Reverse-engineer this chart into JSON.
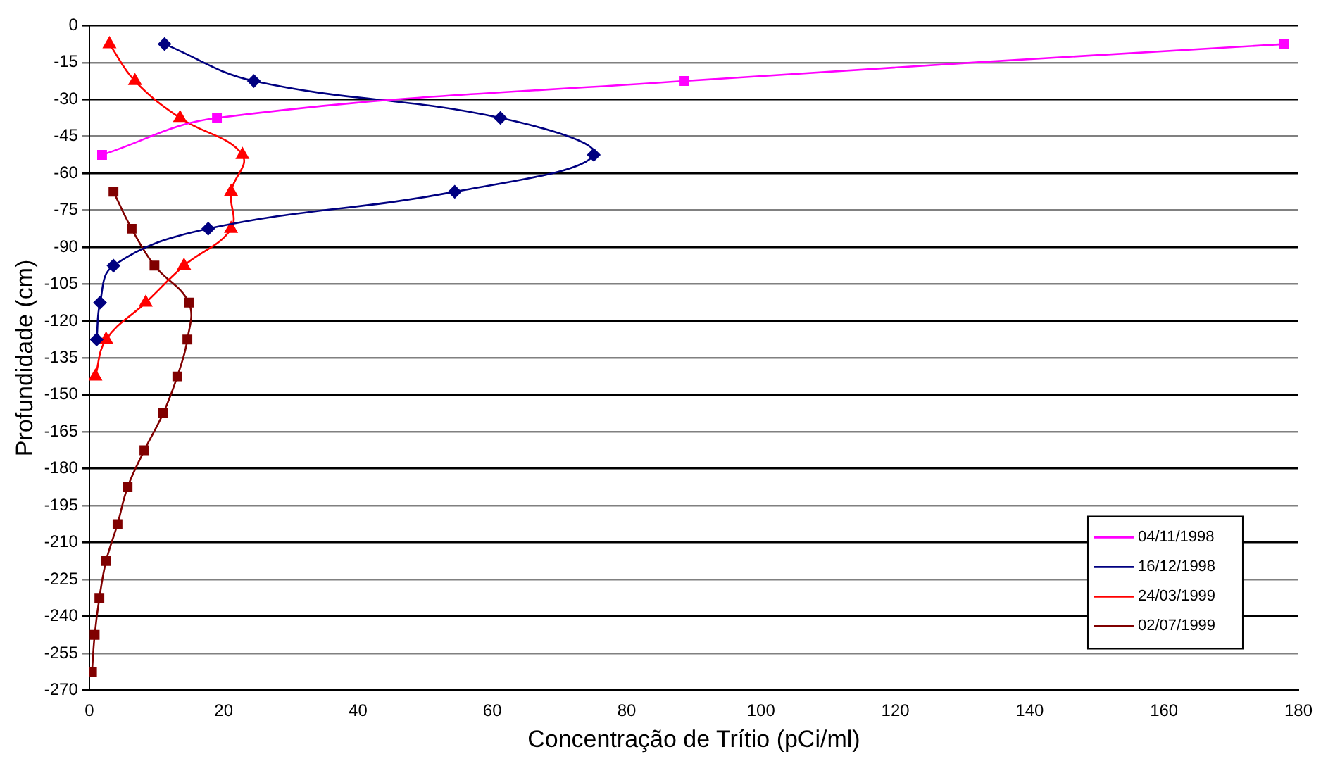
{
  "chart_data": {
    "type": "line",
    "xlabel": "Concentração de Trítio (pCi/ml)",
    "ylabel": "Profundidade (cm)",
    "xlim": [
      0,
      180
    ],
    "xticks": [
      0,
      20,
      40,
      60,
      80,
      100,
      120,
      140,
      160,
      180
    ],
    "ylim": [
      -270,
      0
    ],
    "yticks": [
      0,
      -15,
      -30,
      -45,
      -60,
      -75,
      -90,
      -105,
      -120,
      -135,
      -150,
      -165,
      -180,
      -195,
      -210,
      -225,
      -240,
      -255,
      -270
    ],
    "grid": "y",
    "legend": "bottom right",
    "series": [
      {
        "name": "04/11/1998",
        "color": "#ff00ff",
        "marker": "square",
        "x": [
          177.9,
          88.6,
          19.0,
          1.9
        ],
        "values": [
          -7.5,
          -22.5,
          -37.5,
          -52.5
        ]
      },
      {
        "name": "16/12/1998",
        "color": "#000080",
        "marker": "diamond",
        "x": [
          11.2,
          24.5,
          61.2,
          75.1,
          54.4,
          17.7,
          3.6,
          1.6,
          1.1
        ],
        "values": [
          -7.5,
          -22.5,
          -37.5,
          -52.5,
          -67.5,
          -82.5,
          -97.5,
          -112.5,
          -127.5
        ]
      },
      {
        "name": "24/03/1999",
        "color": "#ff0000",
        "marker": "triangle",
        "x": [
          3.0,
          6.8,
          13.5,
          22.8,
          21.1,
          21.1,
          14.1,
          8.4,
          2.5,
          0.9
        ],
        "values": [
          -7.5,
          -22.5,
          -37.5,
          -52.5,
          -67.5,
          -82.5,
          -97.5,
          -112.5,
          -127.5,
          -142.5
        ]
      },
      {
        "name": "02/07/1999",
        "color": "#800000",
        "marker": "square",
        "x": [
          3.6,
          6.3,
          9.7,
          14.8,
          14.6,
          13.1,
          11.0,
          8.2,
          5.7,
          4.2,
          2.5,
          1.5,
          0.8,
          0.4
        ],
        "values": [
          -67.5,
          -82.5,
          -97.5,
          -112.5,
          -127.5,
          -142.5,
          -157.5,
          -172.5,
          -187.5,
          -202.5,
          -217.5,
          -232.5,
          -247.5,
          -262.5
        ]
      }
    ]
  }
}
